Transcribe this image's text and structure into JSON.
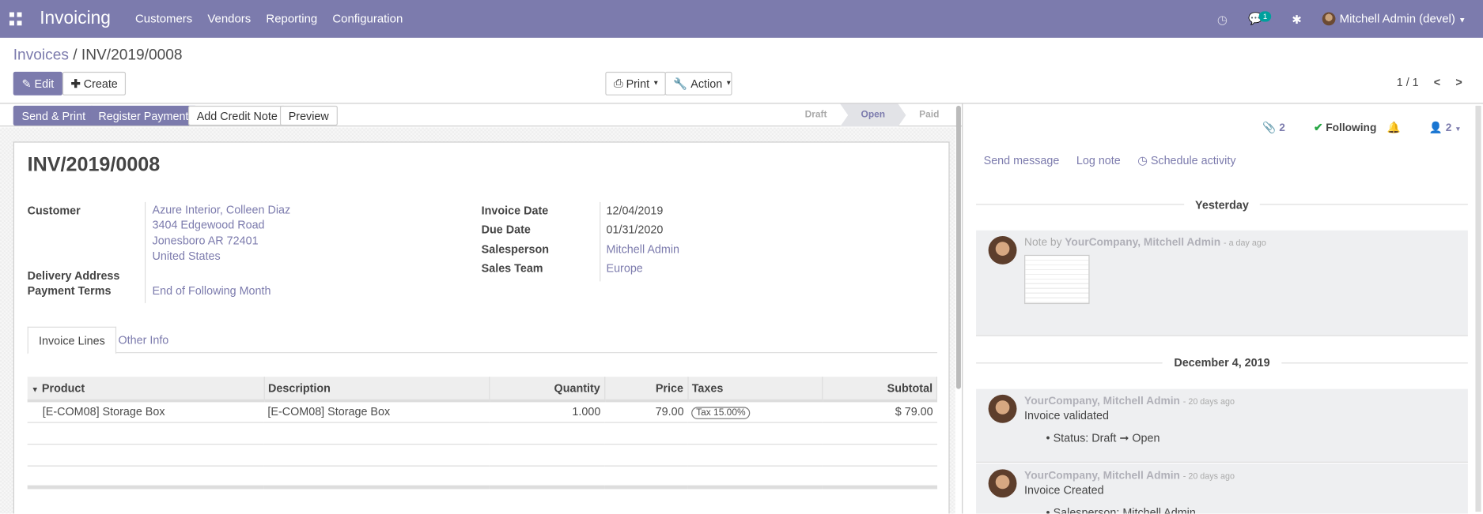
{
  "navbar": {
    "app": "Invoicing",
    "menus": [
      "Customers",
      "Vendors",
      "Reporting",
      "Configuration"
    ],
    "messages_count": "1",
    "user": "Mitchell Admin (devel)",
    "color": "#7c7bad"
  },
  "breadcrumb": {
    "parent": "Invoices",
    "current": "INV/2019/0008"
  },
  "control": {
    "edit": "Edit",
    "create": "Create",
    "print": "Print",
    "action": "Action",
    "pager": "1 / 1"
  },
  "header_buttons": [
    "Send & Print",
    "Register Payment",
    "Add Credit Note",
    "Preview"
  ],
  "stages": {
    "items": [
      "Draft",
      "Open",
      "Paid"
    ],
    "active": "Open"
  },
  "invoice": {
    "title": "INV/2019/0008",
    "customer_label": "Customer",
    "customer": [
      "Azure Interior, Colleen Diaz",
      "3404 Edgewood Road",
      "Jonesboro AR 72401",
      "United States"
    ],
    "delivery_label": "Delivery Address",
    "terms_label": "Payment Terms",
    "terms": "End of Following Month",
    "invoice_date_label": "Invoice Date",
    "invoice_date": "12/04/2019",
    "due_date_label": "Due Date",
    "due_date": "01/31/2020",
    "salesperson_label": "Salesperson",
    "salesperson": "Mitchell Admin",
    "team_label": "Sales Team",
    "team": "Europe"
  },
  "tabs": [
    "Invoice Lines",
    "Other Info"
  ],
  "lines": {
    "headers": [
      "Product",
      "Description",
      "Quantity",
      "Price",
      "Taxes",
      "Subtotal"
    ],
    "rows": [
      {
        "product": "[E-COM08] Storage Box",
        "description": "[E-COM08] Storage Box",
        "quantity": "1.000",
        "price": "79.00",
        "tax": "Tax 15.00%",
        "subtotal": "$ 79.00"
      }
    ]
  },
  "chatter": {
    "attachments": "2",
    "following": "Following",
    "followers": "2",
    "send_message": "Send message",
    "log_note": "Log note",
    "schedule": "Schedule activity",
    "groups": [
      {
        "date": "Yesterday",
        "messages": [
          {
            "prefix": "Note by",
            "author": "YourCompany, Mitchell Admin",
            "time": "- a day ago"
          }
        ]
      },
      {
        "date": "December 4, 2019",
        "messages": [
          {
            "author": "YourCompany, Mitchell Admin",
            "time": "- 20 days ago",
            "body": "Invoice validated",
            "tracking": "Status: Draft ➞ Open"
          },
          {
            "author": "YourCompany, Mitchell Admin",
            "time": "- 20 days ago",
            "body": "Invoice Created",
            "tracking": "Salesperson: Mitchell Admin"
          }
        ]
      }
    ]
  }
}
